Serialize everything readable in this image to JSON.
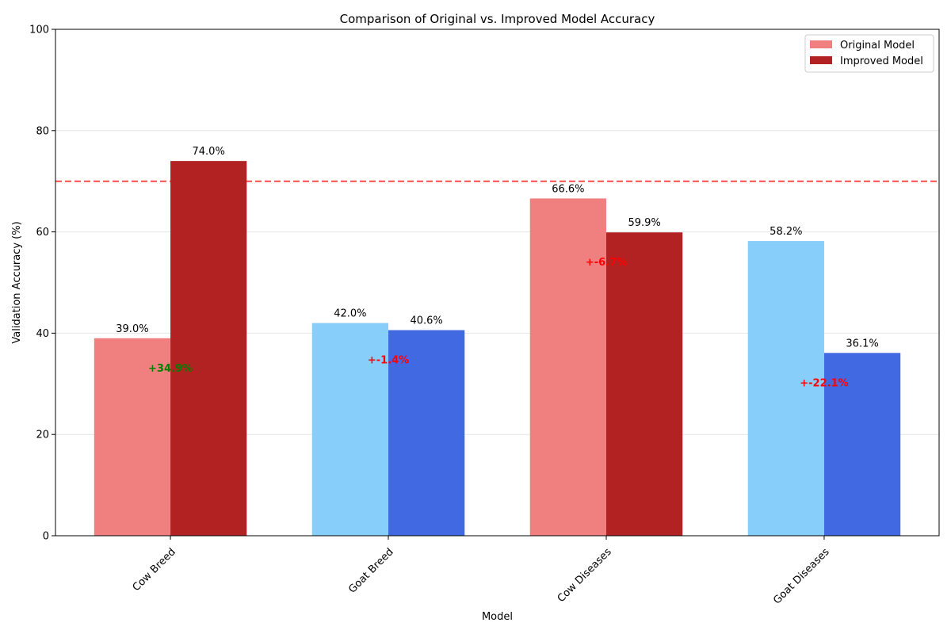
{
  "chart_data": {
    "type": "bar",
    "title": "Comparison of Original vs. Improved Model Accuracy",
    "xlabel": "Model",
    "ylabel": "Validation Accuracy (%)",
    "ylim": [
      0,
      100
    ],
    "yticks": [
      0,
      20,
      40,
      60,
      80,
      100
    ],
    "grid": "y",
    "threshold": 70,
    "categories": [
      "Cow Breed",
      "Goat Breed",
      "Cow Diseases",
      "Goat Diseases"
    ],
    "series": [
      {
        "name": "Original Model",
        "values": [
          39.0,
          42.0,
          66.6,
          58.2
        ],
        "value_labels": [
          "39.0%",
          "42.0%",
          "66.6%",
          "58.2%"
        ],
        "colors": [
          "#f08080",
          "#87cefa",
          "#f08080",
          "#87cefa"
        ]
      },
      {
        "name": "Improved Model",
        "values": [
          74.0,
          40.6,
          59.9,
          36.1
        ],
        "value_labels": [
          "74.0%",
          "40.6%",
          "59.9%",
          "36.1%"
        ],
        "colors": [
          "#b22222",
          "#4169e1",
          "#b22222",
          "#4169e1"
        ]
      }
    ],
    "differences": [
      {
        "label": "+34.9%",
        "color": "#008000"
      },
      {
        "label": "+-1.4%",
        "color": "#ff0000"
      },
      {
        "label": "+-6.7%",
        "color": "#ff0000"
      },
      {
        "label": "+-22.1%",
        "color": "#ff0000"
      }
    ],
    "legend": {
      "position": "top-right",
      "entries": [
        {
          "label": "Original Model",
          "color": "#f08080"
        },
        {
          "label": "Improved Model",
          "color": "#b22222"
        }
      ]
    },
    "threshold_color": "#ff4d4d"
  }
}
